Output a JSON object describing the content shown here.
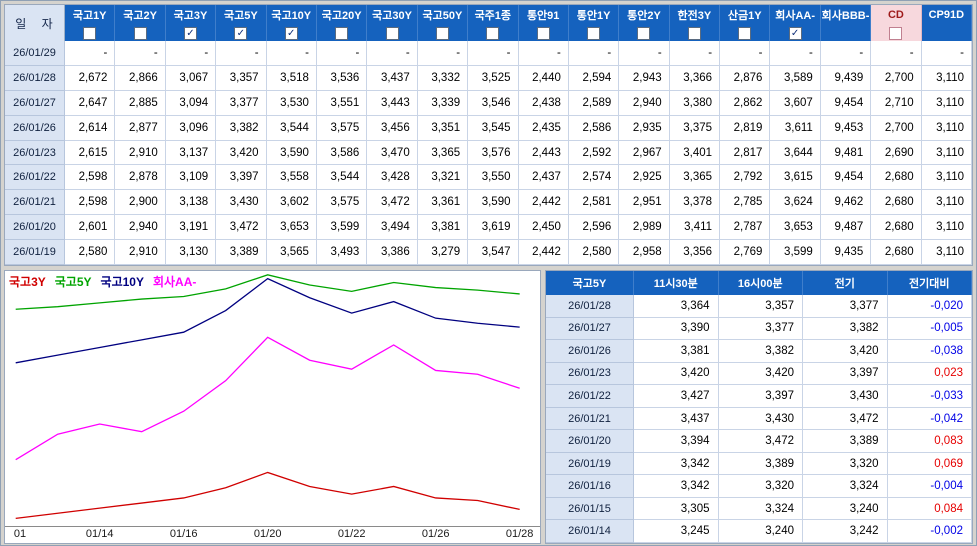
{
  "top_table": {
    "date_header": "일 자",
    "columns": [
      {
        "label": "국고1Y",
        "checkbox": "unchecked"
      },
      {
        "label": "국고2Y",
        "checkbox": "unchecked"
      },
      {
        "label": "국고3Y",
        "checkbox": "checked"
      },
      {
        "label": "국고5Y",
        "checkbox": "checked"
      },
      {
        "label": "국고10Y",
        "checkbox": "checked"
      },
      {
        "label": "국고20Y",
        "checkbox": "unchecked"
      },
      {
        "label": "국고30Y",
        "checkbox": "unchecked"
      },
      {
        "label": "국고50Y",
        "checkbox": "unchecked"
      },
      {
        "label": "국주1종",
        "checkbox": "unchecked"
      },
      {
        "label": "통안91",
        "checkbox": "unchecked"
      },
      {
        "label": "통안1Y",
        "checkbox": "unchecked"
      },
      {
        "label": "통안2Y",
        "checkbox": "unchecked"
      },
      {
        "label": "한전3Y",
        "checkbox": "unchecked"
      },
      {
        "label": "산금1Y",
        "checkbox": "unchecked"
      },
      {
        "label": "회사AA-",
        "checkbox": "checked"
      },
      {
        "label": "회사BBB-",
        "checkbox": "none"
      },
      {
        "label": "CD",
        "checkbox": "unchecked",
        "special": true
      },
      {
        "label": "CP91D",
        "checkbox": "none"
      }
    ],
    "rows": [
      {
        "date": "26/01/29",
        "values": [
          "-",
          "-",
          "-",
          "-",
          "-",
          "-",
          "-",
          "-",
          "-",
          "-",
          "-",
          "-",
          "-",
          "-",
          "-",
          "-",
          "-",
          "-"
        ]
      },
      {
        "date": "26/01/28",
        "values": [
          "2,672",
          "2,866",
          "3,067",
          "3,357",
          "3,518",
          "3,536",
          "3,437",
          "3,332",
          "3,525",
          "2,440",
          "2,594",
          "2,943",
          "3,366",
          "2,876",
          "3,589",
          "9,439",
          "2,700",
          "3,110"
        ]
      },
      {
        "date": "26/01/27",
        "values": [
          "2,647",
          "2,885",
          "3,094",
          "3,377",
          "3,530",
          "3,551",
          "3,443",
          "3,339",
          "3,546",
          "2,438",
          "2,589",
          "2,940",
          "3,380",
          "2,862",
          "3,607",
          "9,454",
          "2,710",
          "3,110"
        ]
      },
      {
        "date": "26/01/26",
        "values": [
          "2,614",
          "2,877",
          "3,096",
          "3,382",
          "3,544",
          "3,575",
          "3,456",
          "3,351",
          "3,545",
          "2,435",
          "2,586",
          "2,935",
          "3,375",
          "2,819",
          "3,611",
          "9,453",
          "2,700",
          "3,110"
        ]
      },
      {
        "date": "26/01/23",
        "values": [
          "2,615",
          "2,910",
          "3,137",
          "3,420",
          "3,590",
          "3,586",
          "3,470",
          "3,365",
          "3,576",
          "2,443",
          "2,592",
          "2,967",
          "3,401",
          "2,817",
          "3,644",
          "9,481",
          "2,690",
          "3,110"
        ]
      },
      {
        "date": "26/01/22",
        "values": [
          "2,598",
          "2,878",
          "3,109",
          "3,397",
          "3,558",
          "3,544",
          "3,428",
          "3,321",
          "3,550",
          "2,437",
          "2,574",
          "2,925",
          "3,365",
          "2,792",
          "3,615",
          "9,454",
          "2,680",
          "3,110"
        ]
      },
      {
        "date": "26/01/21",
        "values": [
          "2,598",
          "2,900",
          "3,138",
          "3,430",
          "3,602",
          "3,575",
          "3,472",
          "3,361",
          "3,590",
          "2,442",
          "2,581",
          "2,951",
          "3,378",
          "2,785",
          "3,624",
          "9,462",
          "2,680",
          "3,110"
        ]
      },
      {
        "date": "26/01/20",
        "values": [
          "2,601",
          "2,940",
          "3,191",
          "3,472",
          "3,653",
          "3,599",
          "3,494",
          "3,381",
          "3,619",
          "2,450",
          "2,596",
          "2,989",
          "3,411",
          "2,787",
          "3,653",
          "9,487",
          "2,680",
          "3,110"
        ]
      },
      {
        "date": "26/01/19",
        "values": [
          "2,580",
          "2,910",
          "3,130",
          "3,389",
          "3,565",
          "3,493",
          "3,386",
          "3,279",
          "3,547",
          "2,442",
          "2,580",
          "2,958",
          "3,356",
          "2,769",
          "3,599",
          "9,435",
          "2,680",
          "3,110"
        ]
      }
    ]
  },
  "chart": {
    "legend": [
      {
        "label": "국고3Y",
        "color": "#d00000"
      },
      {
        "label": "국고5Y",
        "color": "#00a400"
      },
      {
        "label": "국고10Y",
        "color": "#000080"
      },
      {
        "label": "회사AA-",
        "color": "#ff00ff"
      }
    ],
    "x_labels": [
      {
        "text": "01",
        "x": 2.8
      },
      {
        "text": "01/14",
        "x": 17.7
      },
      {
        "text": "01/16",
        "x": 33.4
      },
      {
        "text": "01/20",
        "x": 49.1
      },
      {
        "text": "01/22",
        "x": 64.8
      },
      {
        "text": "01/26",
        "x": 80.5
      },
      {
        "text": "01/28",
        "x": 96.2
      }
    ],
    "series": [
      {
        "name": "국고5Y",
        "color": "#00a400",
        "points": [
          [
            2,
            15
          ],
          [
            9.85,
            14
          ],
          [
            17.7,
            12.5
          ],
          [
            25.55,
            11
          ],
          [
            33.4,
            10
          ],
          [
            41.25,
            7
          ],
          [
            49.1,
            1.5
          ],
          [
            56.95,
            5.5
          ],
          [
            64.8,
            8
          ],
          [
            72.65,
            4.5
          ],
          [
            80.5,
            6.5
          ],
          [
            88.35,
            7.5
          ],
          [
            96.2,
            9
          ]
        ]
      },
      {
        "name": "국고10Y",
        "color": "#000080",
        "points": [
          [
            2,
            36
          ],
          [
            9.85,
            33
          ],
          [
            17.7,
            30
          ],
          [
            25.55,
            27
          ],
          [
            33.4,
            24
          ],
          [
            41.25,
            15.5
          ],
          [
            49.1,
            3
          ],
          [
            56.95,
            10.5
          ],
          [
            64.8,
            16.5
          ],
          [
            72.65,
            12
          ],
          [
            80.5,
            18.5
          ],
          [
            88.35,
            20.5
          ],
          [
            96.2,
            22
          ]
        ]
      },
      {
        "name": "회사AA-",
        "color": "#ff00ff",
        "points": [
          [
            2,
            74
          ],
          [
            9.85,
            64
          ],
          [
            17.7,
            60
          ],
          [
            25.55,
            63
          ],
          [
            33.4,
            55
          ],
          [
            41.25,
            43
          ],
          [
            49.1,
            26
          ],
          [
            56.95,
            35
          ],
          [
            64.8,
            38.5
          ],
          [
            72.65,
            29
          ],
          [
            80.5,
            39
          ],
          [
            88.35,
            40.5
          ],
          [
            96.2,
            46
          ]
        ]
      },
      {
        "name": "국고3Y",
        "color": "#d00000",
        "points": [
          [
            2,
            97
          ],
          [
            9.85,
            95
          ],
          [
            17.7,
            93
          ],
          [
            25.55,
            91
          ],
          [
            33.4,
            89
          ],
          [
            41.25,
            85
          ],
          [
            49.1,
            79
          ],
          [
            56.95,
            84.5
          ],
          [
            64.8,
            87.5
          ],
          [
            72.65,
            84.5
          ],
          [
            80.5,
            89
          ],
          [
            88.35,
            90
          ],
          [
            96.2,
            93.5
          ]
        ]
      }
    ]
  },
  "right_table": {
    "series_header": "국고5Y",
    "columns": [
      "11시30분",
      "16시00분",
      "전기",
      "전기대비"
    ],
    "rows": [
      {
        "date": "26/01/28",
        "t1130": "3,364",
        "t1600": "3,357",
        "prev": "3,377",
        "diff": "-0,020"
      },
      {
        "date": "26/01/27",
        "t1130": "3,390",
        "t1600": "3,377",
        "prev": "3,382",
        "diff": "-0,005"
      },
      {
        "date": "26/01/26",
        "t1130": "3,381",
        "t1600": "3,382",
        "prev": "3,420",
        "diff": "-0,038"
      },
      {
        "date": "26/01/23",
        "t1130": "3,420",
        "t1600": "3,420",
        "prev": "3,397",
        "diff": "0,023"
      },
      {
        "date": "26/01/22",
        "t1130": "3,427",
        "t1600": "3,397",
        "prev": "3,430",
        "diff": "-0,033"
      },
      {
        "date": "26/01/21",
        "t1130": "3,437",
        "t1600": "3,430",
        "prev": "3,472",
        "diff": "-0,042"
      },
      {
        "date": "26/01/20",
        "t1130": "3,394",
        "t1600": "3,472",
        "prev": "3,389",
        "diff": "0,083"
      },
      {
        "date": "26/01/19",
        "t1130": "3,342",
        "t1600": "3,389",
        "prev": "3,320",
        "diff": "0,069"
      },
      {
        "date": "26/01/16",
        "t1130": "3,342",
        "t1600": "3,320",
        "prev": "3,324",
        "diff": "-0,004"
      },
      {
        "date": "26/01/15",
        "t1130": "3,305",
        "t1600": "3,324",
        "prev": "3,240",
        "diff": "0,084"
      },
      {
        "date": "26/01/14",
        "t1130": "3,245",
        "t1600": "3,240",
        "prev": "3,242",
        "diff": "-0,002"
      }
    ]
  }
}
